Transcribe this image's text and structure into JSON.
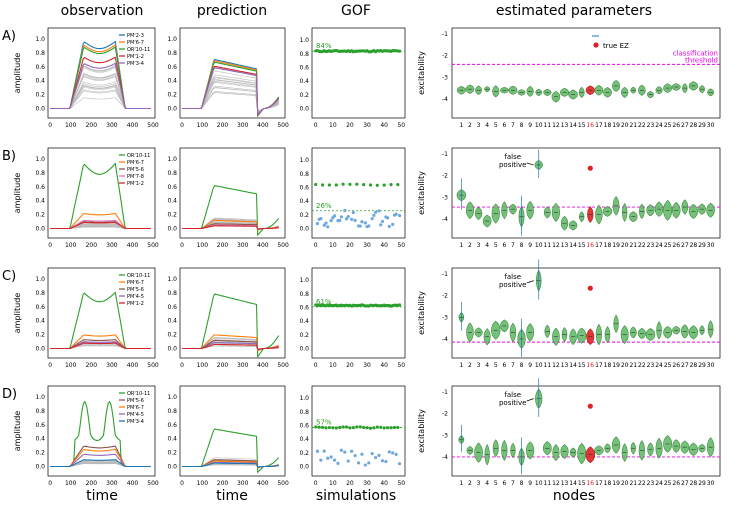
{
  "chart_data": {
    "type": "composite",
    "column_titles": [
      "observation",
      "prediction",
      "GOF",
      "estimated parameters"
    ],
    "row_labels": [
      "A)",
      "B)",
      "C)",
      "D)"
    ],
    "bottom_labels": [
      "time",
      "time",
      "simulations",
      "nodes"
    ],
    "time_ticks": [
      "0",
      "100",
      "200",
      "300",
      "400",
      "500"
    ],
    "amp_ticks": [
      "0.0",
      "0.2",
      "0.4",
      "0.6",
      "0.8",
      "1.0"
    ],
    "gof_xticks": [
      "0",
      "10",
      "20",
      "30",
      "40",
      "50"
    ],
    "gof_yticks": [
      "0.0",
      "0.2",
      "0.4",
      "0.6",
      "0.8",
      "1.0"
    ],
    "node_ticks": [
      "1",
      "2",
      "3",
      "4",
      "5",
      "6",
      "7",
      "8",
      "9",
      "10",
      "11",
      "12",
      "13",
      "14",
      "15",
      "16",
      "17",
      "18",
      "19",
      "20",
      "21",
      "22",
      "23",
      "24",
      "25",
      "26",
      "27",
      "28",
      "29",
      "30"
    ],
    "exc_ticks": [
      "-1",
      "-2",
      "-3",
      "-4"
    ],
    "ylabel_obs": "amplitude",
    "ylabel_params": "excitability",
    "true_ez_label": "true EZ",
    "true_ez_node": 16,
    "classification_label_1": "classification",
    "classification_label_2": "threshold",
    "false_positive_1": "false",
    "false_positive_2": "positive",
    "colors": {
      "green": "#2ca02c",
      "orange": "#ff7f0e",
      "blue": "#1f77b4",
      "red": "#d62728",
      "purple": "#9467bd",
      "brown": "#8c564b",
      "pink": "#e377c2",
      "gray": "#bbbbbb",
      "magenta": "#ee00ee",
      "violin": "#66bb6a",
      "ez": "#dd2222",
      "scatter": "#6fa8dc"
    },
    "rows": [
      {
        "legend": [
          "PM'2-3",
          "PM'6-7",
          "OR'10-11",
          "PM'1-2",
          "PM'3-4"
        ],
        "legend_colors": [
          "#1f77b4",
          "#ff7f0e",
          "#2ca02c",
          "#d62728",
          "#9467bd"
        ],
        "gof_percent": "84%",
        "gof_value": 0.84,
        "gof_cluster": 0.84,
        "threshold": -2.4,
        "exc_medians": [
          -3.6,
          -3.55,
          -3.6,
          -3.55,
          -3.65,
          -3.6,
          -3.6,
          -3.7,
          -3.65,
          -3.7,
          -3.7,
          -3.9,
          -3.7,
          -3.8,
          -3.7,
          -3.6,
          -3.6,
          -3.7,
          -3.4,
          -3.7,
          -3.6,
          -3.6,
          -3.8,
          -3.6,
          -3.5,
          -3.45,
          -3.5,
          -3.4,
          -3.55,
          -3.7
        ],
        "false_positive_node": 0
      },
      {
        "legend": [
          "OR'10-11",
          "PM'6-7",
          "PM'5-6",
          "PM'7-8",
          "PM'1-2"
        ],
        "legend_colors": [
          "#2ca02c",
          "#ff7f0e",
          "#8c564b",
          "#e377c2",
          "#d62728"
        ],
        "gof_percent": "26%",
        "gof_value": 0.26,
        "gof_cluster": 0.64,
        "threshold": -3.45,
        "exc_medians": [
          -2.9,
          -3.6,
          -3.75,
          -4.1,
          -3.75,
          -3.6,
          -3.55,
          -3.9,
          -3.6,
          -1.5,
          -3.7,
          -3.7,
          -4.2,
          -4.3,
          -3.9,
          -3.8,
          -3.8,
          -3.65,
          -3.4,
          -3.7,
          -3.9,
          -3.65,
          -3.6,
          -3.55,
          -3.6,
          -3.6,
          -3.45,
          -3.65,
          -3.55,
          -3.6
        ],
        "false_positive_node": 10
      },
      {
        "legend": [
          "OR'10-11",
          "PM'6-7",
          "PM'5-6",
          "PM'4-5",
          "PM'1-2"
        ],
        "legend_colors": [
          "#2ca02c",
          "#ff7f0e",
          "#8c564b",
          "#9467bd",
          "#d62728"
        ],
        "gof_percent": "61%",
        "gof_value": 0.61,
        "gof_cluster": 0.63,
        "threshold": -4.15,
        "exc_medians": [
          -3.0,
          -3.7,
          -3.7,
          -3.9,
          -3.6,
          -3.4,
          -3.7,
          -4.0,
          -3.7,
          -1.3,
          -3.65,
          -3.9,
          -3.8,
          -3.9,
          -3.85,
          -3.9,
          -3.8,
          -3.8,
          -3.3,
          -3.8,
          -3.7,
          -3.75,
          -3.8,
          -3.6,
          -3.7,
          -3.6,
          -3.65,
          -3.7,
          -3.6,
          -3.55
        ],
        "false_positive_node": 10
      },
      {
        "legend": [
          "OR'10-11",
          "PM'5-6",
          "PM'6-7",
          "PM'4-5",
          "PM'3-4"
        ],
        "legend_colors": [
          "#2ca02c",
          "#8c564b",
          "#ff7f0e",
          "#9467bd",
          "#1f77b4"
        ],
        "gof_percent": "57%",
        "gof_value": 0.57,
        "gof_cluster": 0.57,
        "threshold": -4.0,
        "exc_medians": [
          -3.2,
          -3.7,
          -3.8,
          -3.9,
          -3.6,
          -3.7,
          -3.7,
          -4.0,
          -3.7,
          -1.3,
          -3.6,
          -3.8,
          -3.75,
          -3.8,
          -3.85,
          -3.9,
          -3.7,
          -3.6,
          -3.45,
          -3.8,
          -3.6,
          -3.7,
          -3.65,
          -3.6,
          -3.4,
          -3.5,
          -3.55,
          -3.65,
          -3.6,
          -3.55
        ],
        "false_positive_node": 10
      }
    ]
  }
}
